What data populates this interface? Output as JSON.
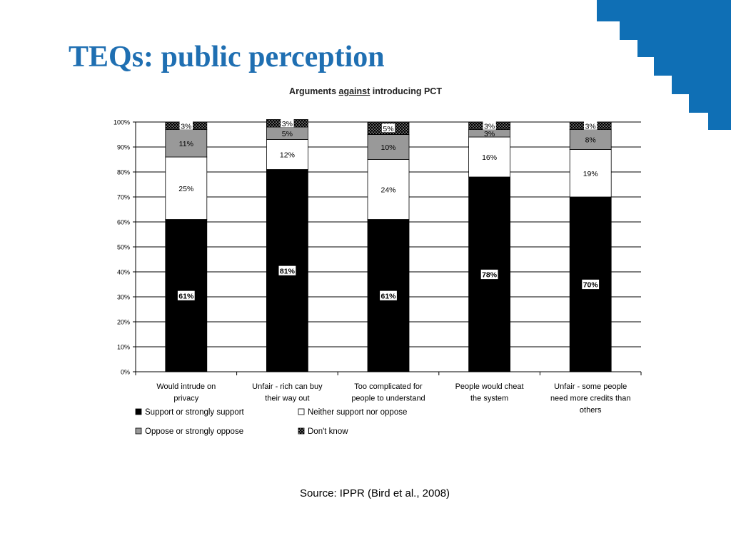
{
  "slide": {
    "title": "TEQs: public perception",
    "source": "Source: IPPR (Bird et al., 2008)",
    "accent_color": "#1f6fb2",
    "decoration_color": "#0f6fb5"
  },
  "chart_data": {
    "type": "bar",
    "stacked": true,
    "percent": true,
    "title_parts": [
      "Arguments ",
      "against",
      " introducing PCT"
    ],
    "categories": [
      [
        "Would intrude on",
        "privacy"
      ],
      [
        "Unfair - rich can buy",
        "their way out"
      ],
      [
        "Too complicated for",
        "people to understand"
      ],
      [
        "People would cheat",
        "the system"
      ],
      [
        "Unfair - some people",
        "need more credits than",
        "others"
      ]
    ],
    "series": [
      {
        "name": "Support or strongly support",
        "values": [
          61,
          81,
          61,
          78,
          70
        ],
        "labels": [
          "61%",
          "81%",
          "61%",
          "78%",
          "70%"
        ],
        "color": "#000000",
        "pattern": "solid"
      },
      {
        "name": "Neither support nor oppose",
        "values": [
          25,
          12,
          24,
          16,
          19
        ],
        "labels": [
          "25%",
          "12%",
          "24%",
          "16%",
          "19%"
        ],
        "color": "#ffffff",
        "pattern": "solid"
      },
      {
        "name": "Oppose or strongly oppose",
        "values": [
          11,
          5,
          10,
          3,
          8
        ],
        "labels": [
          "11%",
          "5%",
          "10%",
          "3%",
          "8%"
        ],
        "color": "#999999",
        "pattern": "solid"
      },
      {
        "name": "Don't know",
        "values": [
          3,
          3,
          5,
          3,
          3
        ],
        "labels": [
          "3%",
          "3%",
          "5%",
          "3%",
          "3%"
        ],
        "color": "#000000",
        "pattern": "dots"
      }
    ],
    "ylim": [
      0,
      100
    ],
    "yticks": [
      "0%",
      "10%",
      "20%",
      "30%",
      "40%",
      "50%",
      "60%",
      "70%",
      "80%",
      "90%",
      "100%"
    ],
    "grid": true,
    "legend_position": "bottom-left"
  }
}
